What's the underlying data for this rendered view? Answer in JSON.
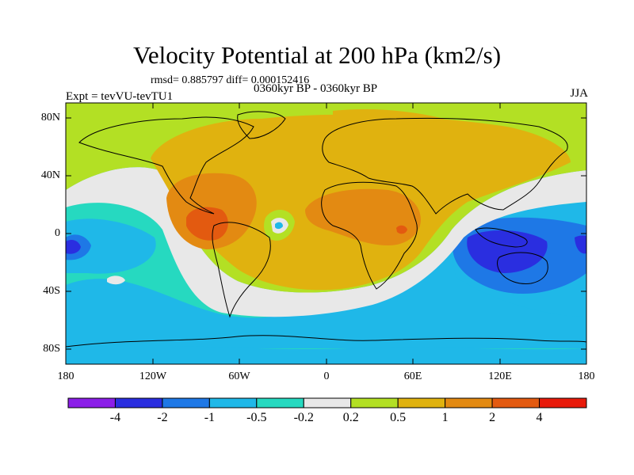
{
  "title": "Velocity Potential at 200 hPa (km2/s)",
  "stats": "rmsd= 0.885797 diff= 0.000152416",
  "experiment": "Expt = tevVU-tevTU1",
  "period": "0360kyr BP - 0360kyr BP",
  "season": "JJA",
  "y_ticks": [
    "80N",
    "40N",
    "0",
    "40S",
    "80S"
  ],
  "x_ticks": [
    "180",
    "120W",
    "60W",
    "0",
    "60E",
    "120E",
    "180"
  ],
  "colorbar": {
    "colors": [
      "#8b1ee8",
      "#2a2ee0",
      "#1e78e6",
      "#1fb8e8",
      "#26d9c0",
      "#e8e8e8",
      "#b3e024",
      "#e0b20f",
      "#e38a12",
      "#e35a10",
      "#e81a0a"
    ],
    "labels": [
      "-4",
      "-2",
      "-1",
      "-0.5",
      "-0.2",
      "0.2",
      "0.5",
      "1",
      "2",
      "4"
    ]
  }
}
